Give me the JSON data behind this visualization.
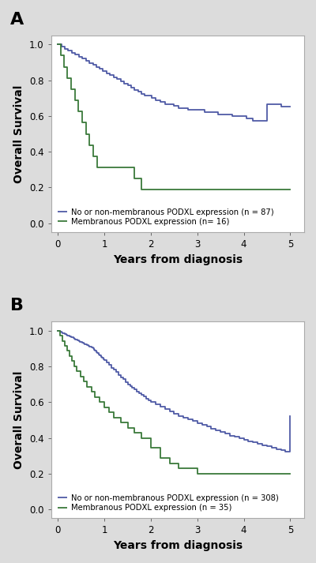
{
  "panel_A": {
    "label": "A",
    "blue_x": [
      0,
      0.08,
      0.15,
      0.22,
      0.3,
      0.37,
      0.45,
      0.52,
      0.6,
      0.67,
      0.75,
      0.82,
      0.9,
      0.97,
      1.05,
      1.12,
      1.2,
      1.27,
      1.35,
      1.42,
      1.5,
      1.57,
      1.65,
      1.72,
      1.8,
      1.87,
      1.95,
      2.02,
      2.1,
      2.2,
      2.3,
      2.4,
      2.5,
      2.6,
      2.7,
      2.8,
      2.9,
      3.0,
      3.15,
      3.3,
      3.45,
      3.6,
      3.75,
      3.9,
      4.05,
      4.2,
      4.35,
      4.5,
      4.65,
      4.8,
      5.0
    ],
    "blue_y": [
      1.0,
      0.989,
      0.977,
      0.966,
      0.954,
      0.943,
      0.931,
      0.92,
      0.908,
      0.897,
      0.886,
      0.874,
      0.863,
      0.851,
      0.84,
      0.828,
      0.817,
      0.805,
      0.793,
      0.782,
      0.77,
      0.759,
      0.747,
      0.736,
      0.724,
      0.713,
      0.713,
      0.701,
      0.69,
      0.678,
      0.667,
      0.667,
      0.656,
      0.644,
      0.644,
      0.633,
      0.633,
      0.633,
      0.621,
      0.621,
      0.61,
      0.61,
      0.598,
      0.598,
      0.587,
      0.575,
      0.575,
      0.664,
      0.664,
      0.653,
      0.653
    ],
    "green_x": [
      0,
      0.06,
      0.13,
      0.2,
      0.28,
      0.36,
      0.44,
      0.52,
      0.6,
      0.68,
      0.76,
      0.85,
      0.93,
      1.05,
      1.15,
      1.25,
      1.35,
      1.5,
      1.65,
      1.8,
      2.0,
      2.2,
      2.5,
      5.0
    ],
    "green_y": [
      1.0,
      0.938,
      0.875,
      0.813,
      0.75,
      0.688,
      0.625,
      0.563,
      0.5,
      0.438,
      0.375,
      0.313,
      0.313,
      0.313,
      0.313,
      0.313,
      0.313,
      0.313,
      0.25,
      0.188,
      0.188,
      0.188,
      0.188,
      0.188
    ],
    "blue_label": "No or non-membranous PODXL expression (n = 87)",
    "green_label": "Membranous PODXL expression (n= 16)",
    "ylabel": "Overall Survival",
    "xlabel": "Years from diagnosis",
    "ylim": [
      -0.05,
      1.05
    ],
    "xlim": [
      -0.15,
      5.3
    ]
  },
  "panel_B": {
    "label": "B",
    "blue_x": [
      0,
      0.025,
      0.05,
      0.075,
      0.1,
      0.125,
      0.15,
      0.175,
      0.2,
      0.225,
      0.25,
      0.275,
      0.3,
      0.325,
      0.35,
      0.375,
      0.4,
      0.425,
      0.45,
      0.475,
      0.5,
      0.525,
      0.55,
      0.575,
      0.6,
      0.625,
      0.65,
      0.675,
      0.7,
      0.725,
      0.75,
      0.775,
      0.8,
      0.825,
      0.85,
      0.875,
      0.9,
      0.925,
      0.95,
      0.975,
      1.0,
      1.05,
      1.1,
      1.15,
      1.2,
      1.25,
      1.3,
      1.35,
      1.4,
      1.45,
      1.5,
      1.55,
      1.6,
      1.65,
      1.7,
      1.75,
      1.8,
      1.85,
      1.9,
      1.95,
      2.0,
      2.1,
      2.2,
      2.3,
      2.4,
      2.5,
      2.6,
      2.7,
      2.8,
      2.9,
      3.0,
      3.1,
      3.2,
      3.3,
      3.4,
      3.5,
      3.6,
      3.7,
      3.8,
      3.9,
      4.0,
      4.1,
      4.2,
      4.3,
      4.4,
      4.5,
      4.6,
      4.7,
      4.8,
      4.9,
      5.0
    ],
    "blue_y": [
      1.0,
      0.997,
      0.993,
      0.99,
      0.987,
      0.984,
      0.98,
      0.977,
      0.974,
      0.971,
      0.967,
      0.964,
      0.961,
      0.958,
      0.954,
      0.951,
      0.948,
      0.945,
      0.941,
      0.938,
      0.935,
      0.932,
      0.928,
      0.925,
      0.922,
      0.919,
      0.915,
      0.912,
      0.909,
      0.906,
      0.9,
      0.893,
      0.887,
      0.88,
      0.873,
      0.867,
      0.86,
      0.853,
      0.847,
      0.84,
      0.833,
      0.82,
      0.807,
      0.793,
      0.78,
      0.767,
      0.753,
      0.74,
      0.727,
      0.713,
      0.7,
      0.69,
      0.68,
      0.67,
      0.66,
      0.65,
      0.64,
      0.63,
      0.62,
      0.61,
      0.6,
      0.587,
      0.573,
      0.56,
      0.547,
      0.533,
      0.523,
      0.513,
      0.503,
      0.493,
      0.483,
      0.473,
      0.463,
      0.453,
      0.443,
      0.433,
      0.423,
      0.413,
      0.405,
      0.397,
      0.39,
      0.382,
      0.375,
      0.367,
      0.36,
      0.353,
      0.345,
      0.338,
      0.33,
      0.323,
      0.523
    ],
    "green_x": [
      0,
      0.05,
      0.1,
      0.15,
      0.2,
      0.25,
      0.3,
      0.35,
      0.4,
      0.48,
      0.55,
      0.63,
      0.72,
      0.8,
      0.9,
      1.0,
      1.1,
      1.2,
      1.35,
      1.5,
      1.65,
      1.8,
      2.0,
      2.2,
      2.4,
      2.6,
      2.8,
      3.0,
      3.5,
      3.8,
      5.0
    ],
    "green_y": [
      1.0,
      0.971,
      0.943,
      0.914,
      0.886,
      0.857,
      0.829,
      0.8,
      0.771,
      0.743,
      0.714,
      0.686,
      0.657,
      0.629,
      0.6,
      0.571,
      0.543,
      0.514,
      0.486,
      0.457,
      0.429,
      0.4,
      0.343,
      0.286,
      0.257,
      0.229,
      0.229,
      0.2,
      0.2,
      0.2,
      0.2
    ],
    "blue_label": "No or non-membranous PODXL expression (n = 308)",
    "green_label": "Membranous PODXL expression (n = 35)",
    "ylabel": "Overall Survival",
    "xlabel": "Years from diagnosis",
    "ylim": [
      -0.05,
      1.05
    ],
    "xlim": [
      -0.15,
      5.3
    ]
  },
  "blue_color": "#4f5ba6",
  "green_color": "#3a7a3a",
  "linewidth": 1.3,
  "bg_color": "#dcdcdc",
  "panel_bg": "#ffffff",
  "font_size_axis": 8.5,
  "font_size_legend": 7.2,
  "font_size_label": 16
}
